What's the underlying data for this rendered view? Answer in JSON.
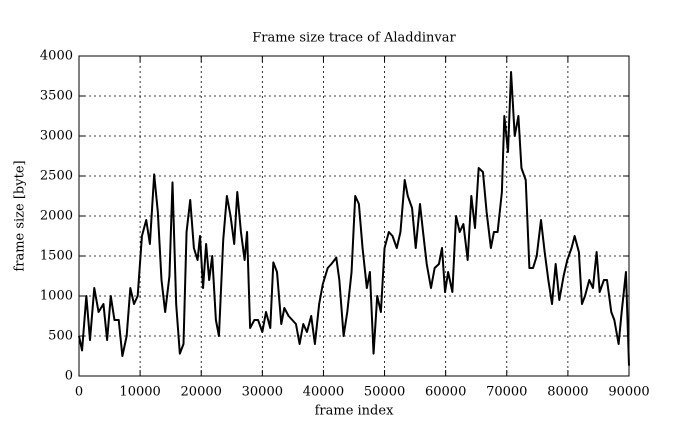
{
  "chart_data": {
    "type": "line",
    "title": "Frame size trace of Aladdinvar",
    "x_label": "frame index",
    "y_label": "frame size [byte]",
    "xlim": [
      0,
      90000
    ],
    "ylim": [
      0,
      4000
    ],
    "xticks": [
      0,
      10000,
      20000,
      30000,
      40000,
      50000,
      60000,
      70000,
      80000,
      90000
    ],
    "yticks": [
      0,
      500,
      1000,
      1500,
      2000,
      2500,
      3000,
      3500,
      4000
    ],
    "grid": true,
    "series": [
      {
        "color": "#000000",
        "x": [
          0,
          500,
          1200,
          1800,
          2500,
          3200,
          4000,
          4600,
          5200,
          5800,
          6500,
          7100,
          7800,
          8400,
          9000,
          9600,
          10300,
          11000,
          11600,
          12300,
          12900,
          13500,
          14100,
          14800,
          15300,
          15900,
          16500,
          17100,
          17600,
          18200,
          18800,
          19400,
          19800,
          20300,
          20800,
          21300,
          21800,
          22400,
          22900,
          23600,
          24200,
          24800,
          25400,
          25900,
          26500,
          27100,
          27500,
          28000,
          28700,
          29300,
          30000,
          30600,
          31300,
          31800,
          32400,
          33100,
          33600,
          34300,
          34900,
          35500,
          36100,
          36700,
          37300,
          38000,
          38600,
          39300,
          39900,
          40700,
          41300,
          42100,
          42600,
          43300,
          43900,
          44600,
          45200,
          45800,
          46400,
          47100,
          47600,
          48200,
          48800,
          49400,
          50000,
          50700,
          51300,
          52000,
          52600,
          53300,
          53800,
          54500,
          55100,
          55800,
          56300,
          56900,
          57600,
          58200,
          58900,
          59400,
          59900,
          60400,
          61100,
          61700,
          62300,
          62900,
          63600,
          64200,
          64800,
          65400,
          66100,
          66700,
          67400,
          67900,
          68500,
          69200,
          69600,
          70200,
          70700,
          71300,
          71900,
          72400,
          73100,
          73700,
          74300,
          74900,
          75600,
          76200,
          76800,
          77400,
          78000,
          78600,
          79300,
          79900,
          80600,
          81100,
          81800,
          82300,
          82800,
          83500,
          84100,
          84700,
          85200,
          85900,
          86400,
          87100,
          87600,
          88300,
          88800,
          89500,
          90000
        ],
        "values": [
          500,
          320,
          1000,
          450,
          1100,
          800,
          900,
          450,
          1000,
          700,
          700,
          250,
          500,
          1100,
          900,
          1000,
          1750,
          1950,
          1650,
          2520,
          2050,
          1200,
          800,
          1250,
          2420,
          900,
          280,
          400,
          1800,
          2200,
          1600,
          1450,
          1750,
          1100,
          1650,
          1200,
          1500,
          700,
          500,
          1700,
          2250,
          2000,
          1650,
          2300,
          1800,
          1450,
          1800,
          600,
          700,
          700,
          550,
          800,
          600,
          1420,
          1300,
          650,
          850,
          750,
          700,
          650,
          400,
          650,
          550,
          750,
          400,
          900,
          1150,
          1350,
          1400,
          1480,
          1200,
          500,
          800,
          1300,
          2250,
          2150,
          1600,
          1100,
          1300,
          280,
          1000,
          800,
          1600,
          1800,
          1750,
          1600,
          1800,
          2450,
          2250,
          2100,
          1600,
          2150,
          1800,
          1400,
          1100,
          1350,
          1400,
          1600,
          1050,
          1300,
          1050,
          2000,
          1800,
          1900,
          1450,
          2250,
          1850,
          2600,
          2550,
          2050,
          1600,
          1800,
          1800,
          2300,
          3250,
          2800,
          3800,
          3000,
          3250,
          2600,
          2450,
          1350,
          1350,
          1500,
          1950,
          1550,
          1200,
          900,
          1400,
          950,
          1250,
          1450,
          1600,
          1750,
          1550,
          900,
          1000,
          1200,
          1100,
          1550,
          1050,
          1200,
          1200,
          800,
          700,
          400,
          800,
          1300,
          130
        ]
      }
    ]
  }
}
